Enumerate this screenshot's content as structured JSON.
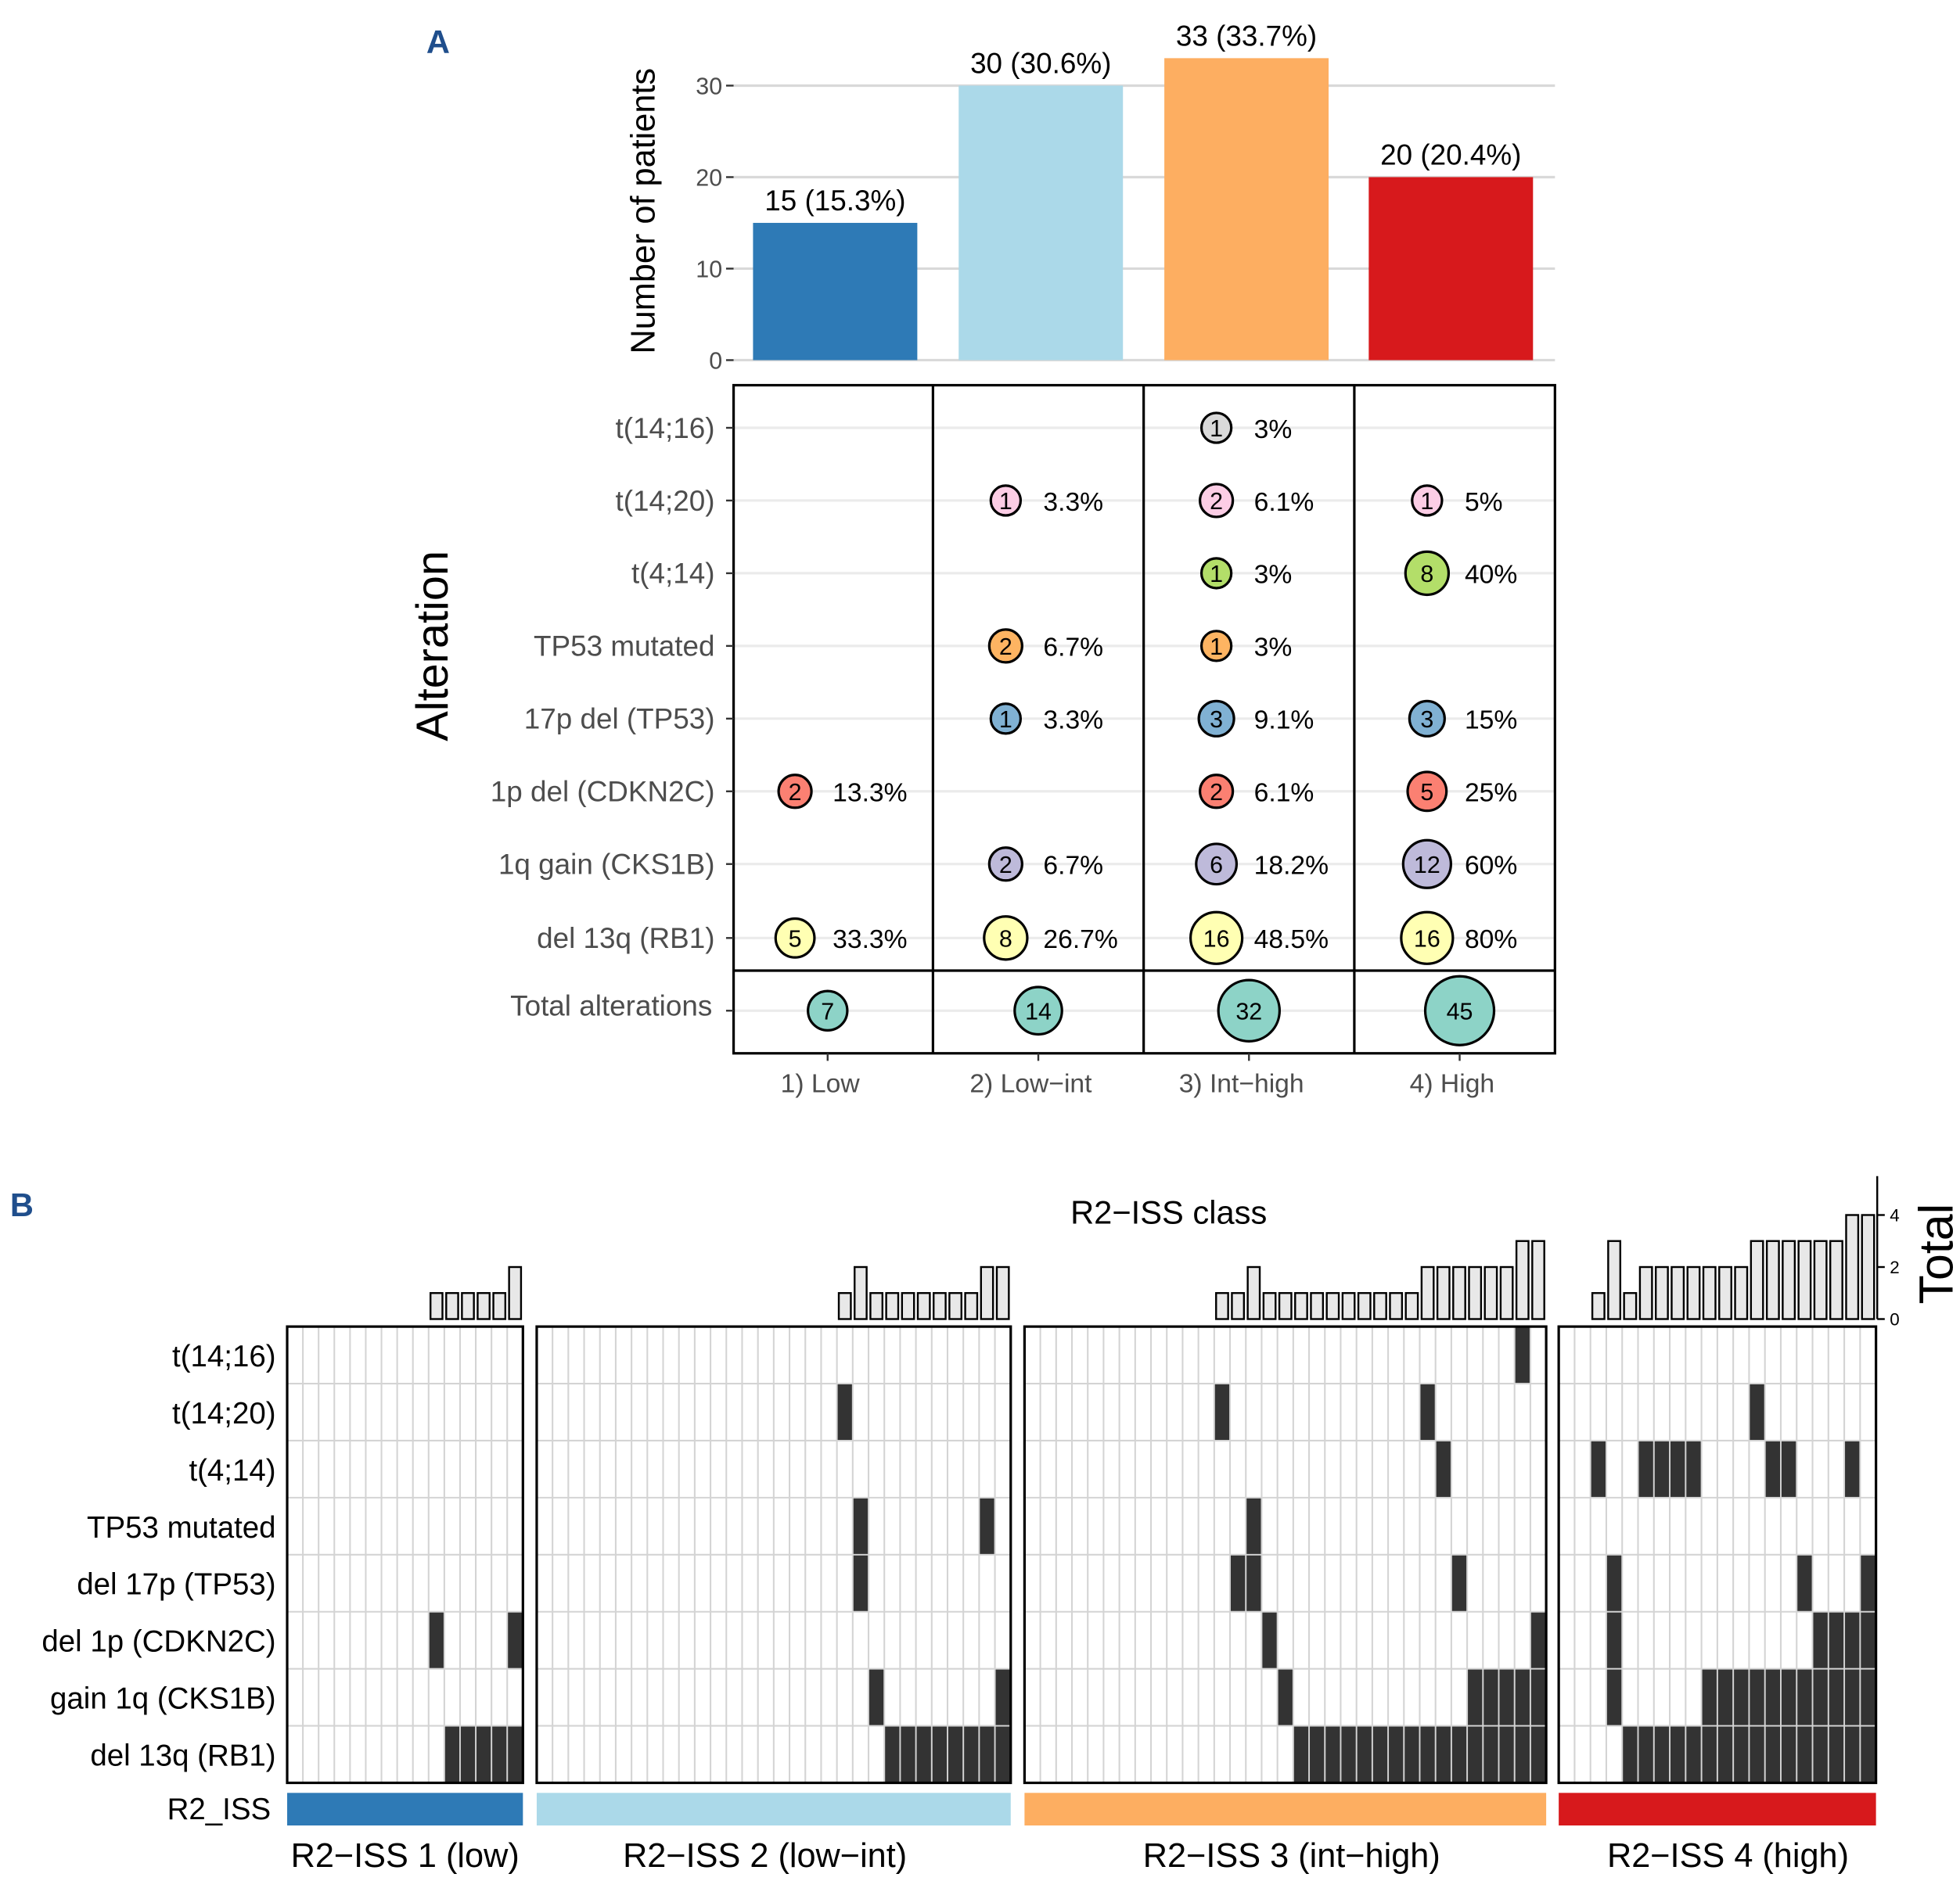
{
  "panel_a_label": "A",
  "panel_b_label": "B",
  "colors": {
    "groups": [
      "#2e7ab6",
      "#abd9e9",
      "#fdae61",
      "#d7191c"
    ],
    "alterations": [
      "#d9d9d9",
      "#fccde5",
      "#b3de69",
      "#fdb462",
      "#80b1d3",
      "#fb8072",
      "#bebada",
      "#ffffb3"
    ],
    "total": "#8dd3c7",
    "label_blue": "#1f4e8c",
    "cell_on": "#333333",
    "total_bar": "#e8e8e8"
  },
  "chart_data": [
    {
      "type": "bar",
      "ylabel": "Number of patients",
      "ylim": [
        0,
        33
      ],
      "yticks": [
        "0",
        "10",
        "20",
        "30"
      ],
      "grid": true,
      "categories": [
        "1) Low",
        "2) Low−int",
        "3) Int−high",
        "4) High"
      ],
      "values": [
        15,
        30,
        33,
        20
      ],
      "data_labels": [
        "15 (15.3%)",
        "30 (30.6%)",
        "33 (33.7%)",
        "20 (20.4%)"
      ]
    },
    {
      "type": "scatter",
      "subtype": "bubble-matrix",
      "ylabel": "Alteration",
      "categories": [
        "1) Low",
        "2) Low−int",
        "3) Int−high",
        "4) High"
      ],
      "rows": [
        "t(14;16)",
        "t(14;20)",
        "t(4;14)",
        "TP53 mutated",
        "17p del (TP53)",
        "1p del (CDKN2C)",
        "1q gain (CKS1B)",
        "del 13q (RB1)"
      ],
      "counts": [
        [
          null,
          null,
          1,
          null
        ],
        [
          null,
          1,
          2,
          1
        ],
        [
          null,
          null,
          1,
          8
        ],
        [
          null,
          2,
          1,
          null
        ],
        [
          null,
          1,
          3,
          3
        ],
        [
          2,
          null,
          2,
          5
        ],
        [
          null,
          2,
          6,
          12
        ],
        [
          5,
          8,
          16,
          16
        ]
      ],
      "percents": [
        [
          null,
          null,
          "3%",
          null
        ],
        [
          null,
          "3.3%",
          "6.1%",
          "5%"
        ],
        [
          null,
          null,
          "3%",
          "40%"
        ],
        [
          null,
          "6.7%",
          "3%",
          null
        ],
        [
          null,
          "3.3%",
          "9.1%",
          "15%"
        ],
        [
          "13.3%",
          null,
          "6.1%",
          "25%"
        ],
        [
          null,
          "6.7%",
          "18.2%",
          "60%"
        ],
        [
          "33.3%",
          "26.7%",
          "48.5%",
          "80%"
        ]
      ],
      "total_label": "Total alterations",
      "totals": [
        7,
        14,
        32,
        45
      ]
    },
    {
      "type": "heatmap",
      "subtype": "oncoprint",
      "title": "R2−ISS class",
      "rows": [
        "t(14;16)",
        "t(14;20)",
        "t(4;14)",
        "TP53 mutated",
        "del 17p (TP53)",
        "del 1p (CDKN2C)",
        "gain 1q (CKS1B)",
        "del 13q (RB1)"
      ],
      "annotation_label": "R2_ISS",
      "top_bar_label": "Total",
      "top_bar_ticks": [
        "0",
        "2",
        "4"
      ],
      "top_bar_ylim": [
        0,
        4
      ],
      "groups": [
        {
          "label": "R2−ISS 1 (low)",
          "patients": 15,
          "altered_patients": [
            [],
            [],
            [],
            [],
            [],
            [
              10,
              15
            ],
            [],
            [
              11,
              12,
              13,
              14,
              15
            ]
          ]
        },
        {
          "label": "R2−ISS 2 (low−int)",
          "patients": 30,
          "altered_patients": [
            [],
            [
              20
            ],
            [],
            [
              21,
              29
            ],
            [
              21
            ],
            [],
            [
              22,
              30
            ],
            [
              23,
              24,
              25,
              26,
              27,
              28,
              29,
              30
            ]
          ]
        },
        {
          "label": "R2−ISS 3 (int−high)",
          "patients": 33,
          "altered_patients": [
            [
              32
            ],
            [
              13,
              26
            ],
            [
              27
            ],
            [
              15
            ],
            [
              14,
              15,
              28
            ],
            [
              16,
              33
            ],
            [
              17,
              29,
              30,
              31,
              32,
              33
            ],
            [
              18,
              19,
              20,
              21,
              22,
              23,
              24,
              25,
              26,
              27,
              28,
              29,
              30,
              31,
              32,
              33
            ]
          ]
        },
        {
          "label": "R2−ISS 4 (high)",
          "patients": 20,
          "altered_patients": [
            [],
            [
              13
            ],
            [
              3,
              6,
              7,
              8,
              9,
              14,
              15,
              19
            ],
            [],
            [
              4,
              16,
              20
            ],
            [
              4,
              17,
              18,
              19,
              20
            ],
            [
              4,
              10,
              11,
              12,
              13,
              14,
              15,
              16,
              17,
              18,
              19,
              20
            ],
            [
              5,
              6,
              7,
              8,
              9,
              10,
              11,
              12,
              13,
              14,
              15,
              16,
              17,
              18,
              19,
              20
            ]
          ]
        }
      ]
    }
  ]
}
